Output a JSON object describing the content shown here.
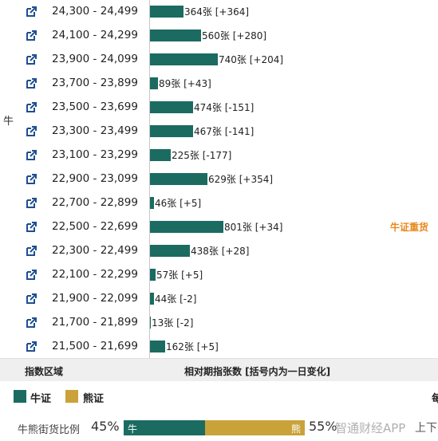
{
  "side_label": "牛",
  "rows": [
    {
      "range": "24,300 - 24,499",
      "count": 364,
      "value_label": "364张 [+364]",
      "hot": ""
    },
    {
      "range": "24,100 - 24,299",
      "count": 560,
      "value_label": "560张 [+280]",
      "hot": ""
    },
    {
      "range": "23,900 - 24,099",
      "count": 740,
      "value_label": "740张 [+204]",
      "hot": ""
    },
    {
      "range": "23,700 - 23,899",
      "count": 89,
      "value_label": "89张 [+43]",
      "hot": ""
    },
    {
      "range": "23,500 - 23,699",
      "count": 474,
      "value_label": "474张 [-151]",
      "hot": ""
    },
    {
      "range": "23,300 - 23,499",
      "count": 467,
      "value_label": "467张 [-141]",
      "hot": ""
    },
    {
      "range": "23,100 - 23,299",
      "count": 225,
      "value_label": "225张 [-177]",
      "hot": ""
    },
    {
      "range": "22,900 - 23,099",
      "count": 629,
      "value_label": "629张 [+354]",
      "hot": ""
    },
    {
      "range": "22,700 - 22,899",
      "count": 46,
      "value_label": "46张 [+5]",
      "hot": ""
    },
    {
      "range": "22,500 - 22,699",
      "count": 801,
      "value_label": "801张 [+34]",
      "hot": "牛证重货"
    },
    {
      "range": "22,300 - 22,499",
      "count": 438,
      "value_label": "438张 [+28]",
      "hot": ""
    },
    {
      "range": "22,100 - 22,299",
      "count": 57,
      "value_label": "57张 [+5]",
      "hot": ""
    },
    {
      "range": "21,900 - 22,099",
      "count": 44,
      "value_label": "44张 [-2]",
      "hot": ""
    },
    {
      "range": "21,700 - 21,899",
      "count": 13,
      "value_label": "13张 [-2]",
      "hot": ""
    },
    {
      "range": "21,500 - 21,699",
      "count": 162,
      "value_label": "162张 [+5]",
      "hot": ""
    }
  ],
  "bar_scale_max": 801,
  "header": {
    "col_range": "指数区域",
    "col_count": "相对期指张数 [括号内为一日变化]"
  },
  "legend": {
    "bull_label": "牛证",
    "bear_label": "熊证",
    "bull_color": "#1b6b61",
    "bear_color": "#c9a23a",
    "edge_text": "每"
  },
  "ratio": {
    "label": "牛熊街货比例",
    "bull_pct": 45,
    "bull_pct_text": "45%",
    "bear_pct_text": "55%",
    "bull_tag": "牛",
    "bear_tag": "熊",
    "watermark": "智通财经APP",
    "updown": "上下"
  }
}
